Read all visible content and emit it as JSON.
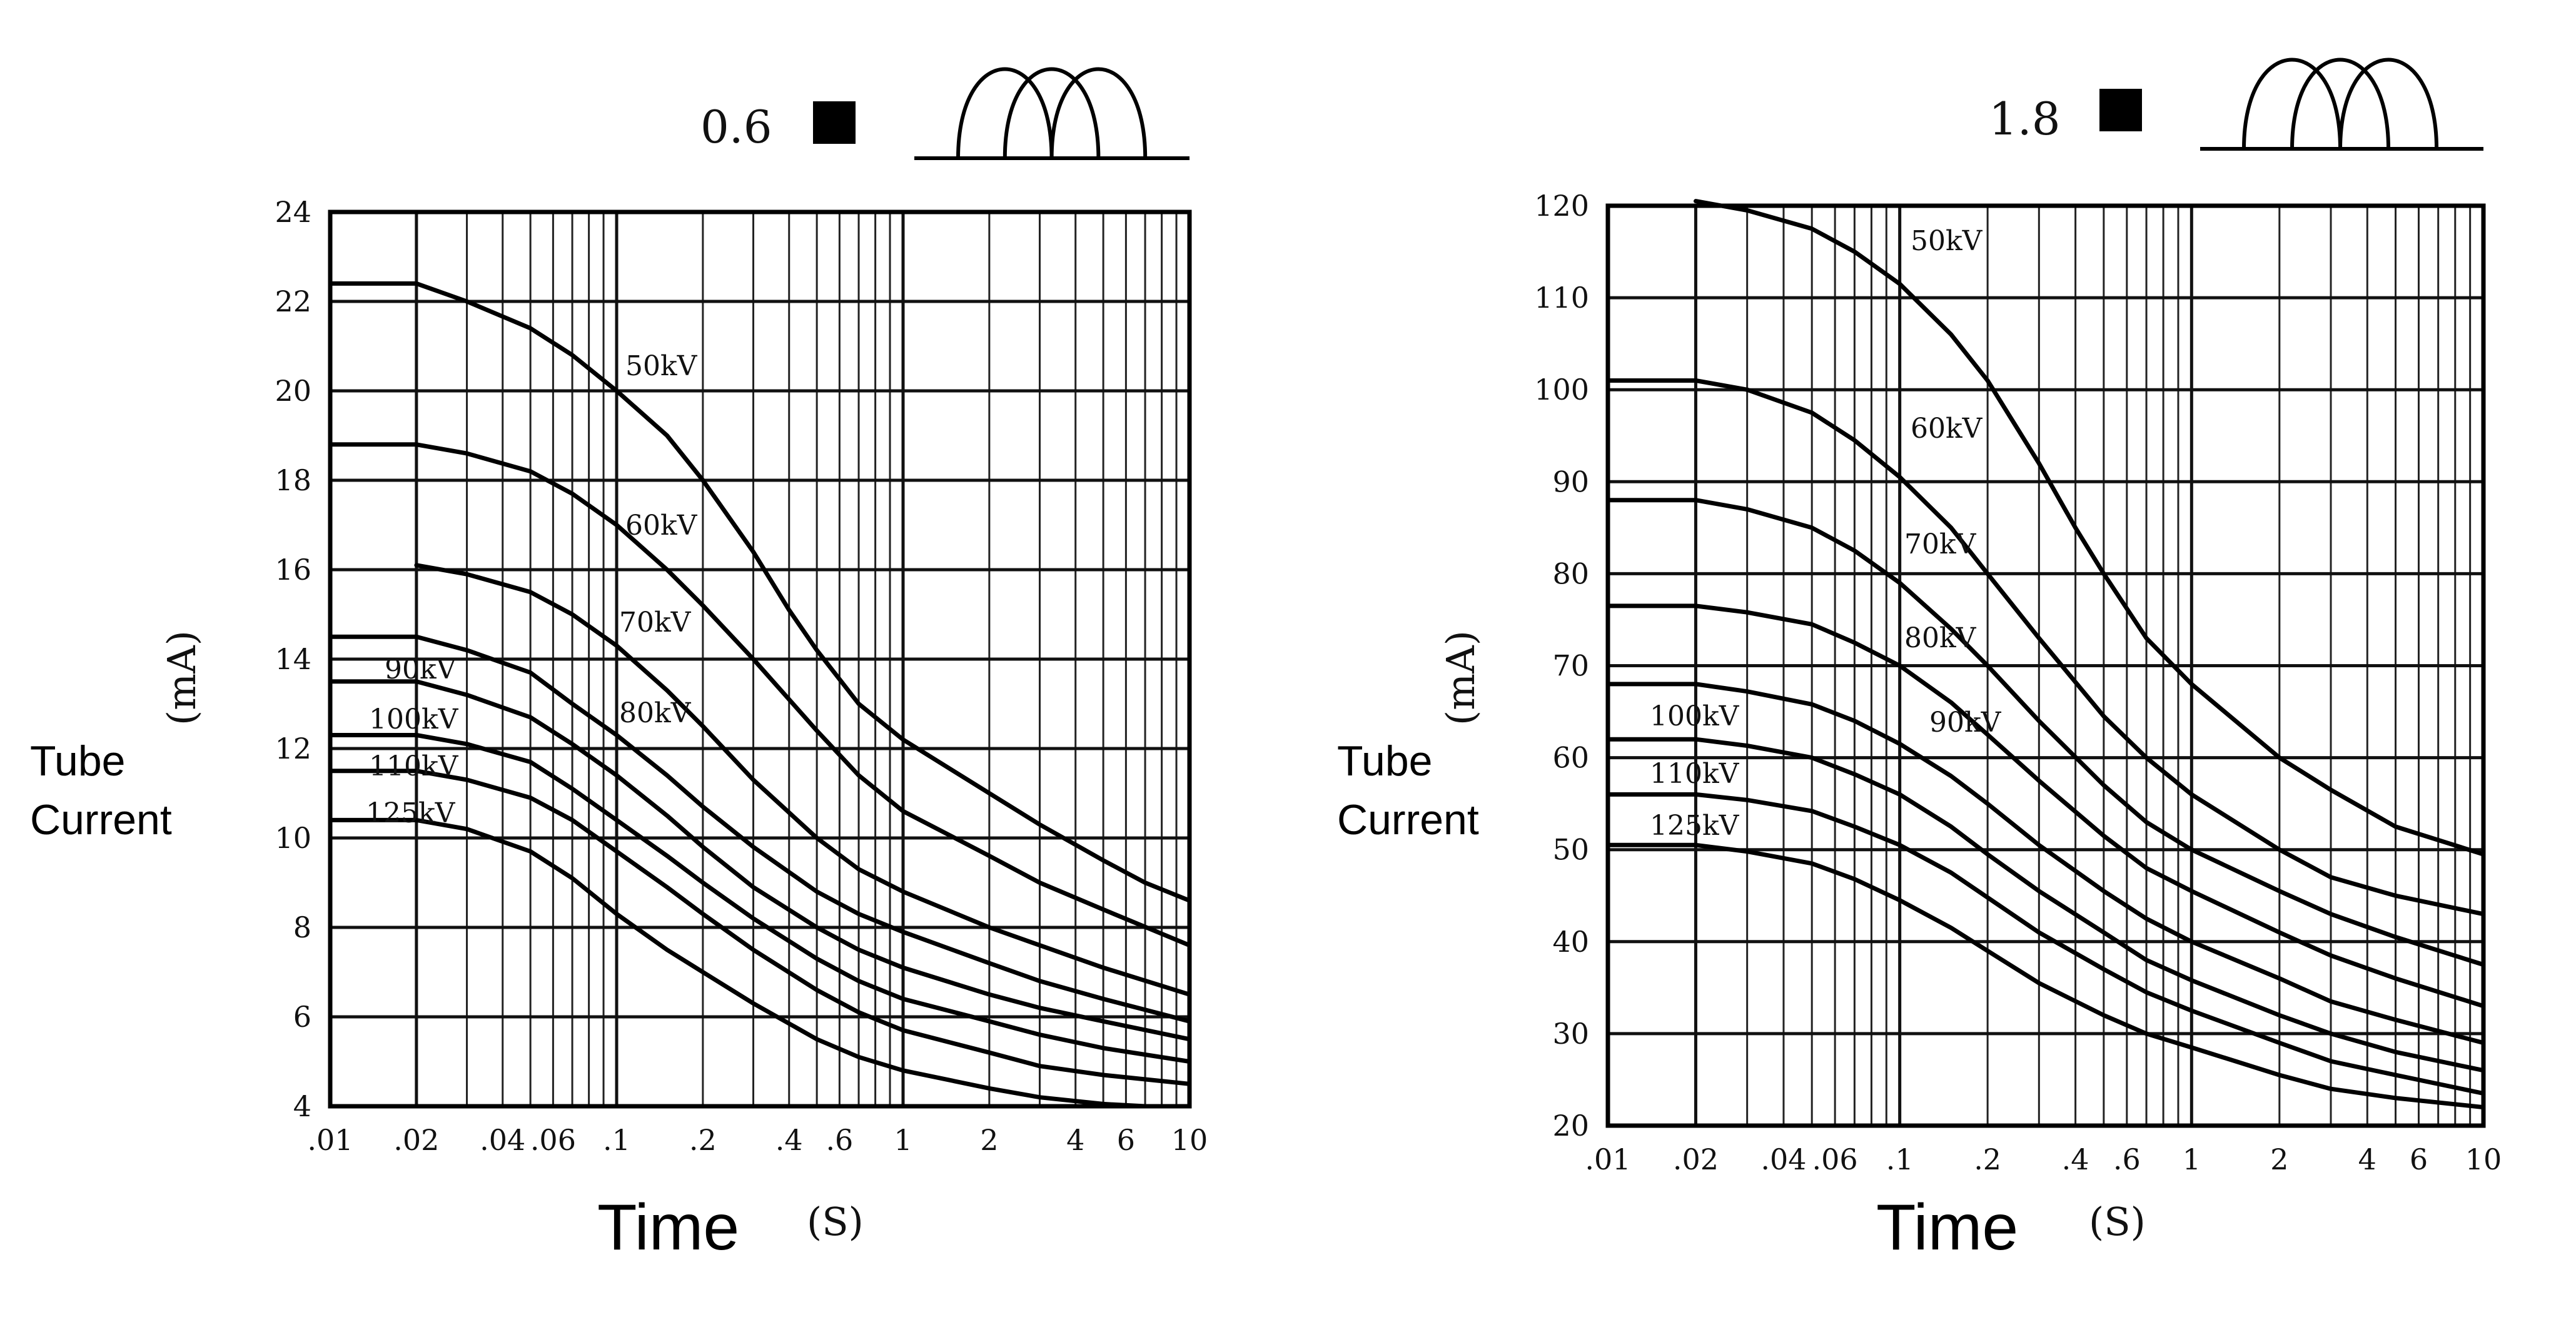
{
  "chart_data": [
    {
      "type": "line",
      "focal_value": "0.6",
      "x_scale": "log",
      "xlim": [
        0.01,
        10
      ],
      "ylim": [
        4,
        24
      ],
      "x_ticks": [
        ".01",
        ".02",
        ".04",
        ".06",
        ".1",
        ".2",
        ".4",
        ".6",
        "1",
        "2",
        "4",
        "6",
        "10"
      ],
      "y_ticks": [
        "4",
        "6",
        "8",
        "10",
        "12",
        "14",
        "16",
        "18",
        "20",
        "22",
        "24"
      ],
      "ylabel_line1": "Tube",
      "ylabel_line2": "Current",
      "ylabel_unit": "(mA)",
      "xlabel": "Time",
      "xlabel_unit": "(S)",
      "grid": true,
      "series": [
        {
          "name": "50kV",
          "x": [
            0.01,
            0.02,
            0.03,
            0.05,
            0.07,
            0.1,
            0.15,
            0.2,
            0.3,
            0.4,
            0.5,
            0.7,
            1,
            2,
            3,
            5,
            7,
            10
          ],
          "y": [
            22.4,
            22.4,
            22.0,
            21.4,
            20.8,
            20.0,
            19.0,
            18.0,
            16.4,
            15.1,
            14.2,
            13.0,
            12.2,
            11.0,
            10.3,
            9.5,
            9.0,
            8.6
          ]
        },
        {
          "name": "60kV",
          "x": [
            0.01,
            0.02,
            0.03,
            0.05,
            0.07,
            0.1,
            0.15,
            0.2,
            0.3,
            0.5,
            0.7,
            1,
            2,
            3,
            5,
            10
          ],
          "y": [
            18.8,
            18.8,
            18.6,
            18.2,
            17.7,
            17.0,
            16.0,
            15.2,
            14.0,
            12.4,
            11.4,
            10.6,
            9.6,
            9.0,
            8.4,
            7.6
          ]
        },
        {
          "name": "70kV",
          "x": [
            0.02,
            0.03,
            0.05,
            0.07,
            0.1,
            0.15,
            0.2,
            0.3,
            0.5,
            0.7,
            1,
            2,
            3,
            5,
            10
          ],
          "y": [
            16.1,
            15.9,
            15.5,
            15.0,
            14.3,
            13.3,
            12.5,
            11.3,
            10.0,
            9.3,
            8.8,
            8.0,
            7.6,
            7.1,
            6.5
          ]
        },
        {
          "name": "80kV",
          "x": [
            0.01,
            0.02,
            0.03,
            0.05,
            0.07,
            0.1,
            0.15,
            0.2,
            0.3,
            0.5,
            0.7,
            1,
            2,
            3,
            5,
            10
          ],
          "y": [
            14.5,
            14.5,
            14.2,
            13.7,
            13.0,
            12.3,
            11.4,
            10.7,
            9.8,
            8.8,
            8.3,
            7.9,
            7.2,
            6.8,
            6.4,
            5.9
          ]
        },
        {
          "name": "90kV",
          "x": [
            0.01,
            0.02,
            0.03,
            0.05,
            0.07,
            0.1,
            0.15,
            0.2,
            0.3,
            0.5,
            0.7,
            1,
            2,
            3,
            5,
            10
          ],
          "y": [
            13.5,
            13.5,
            13.2,
            12.7,
            12.1,
            11.4,
            10.5,
            9.8,
            8.9,
            8.0,
            7.5,
            7.1,
            6.5,
            6.2,
            5.9,
            5.5
          ]
        },
        {
          "name": "100kV",
          "x": [
            0.01,
            0.02,
            0.03,
            0.05,
            0.07,
            0.1,
            0.15,
            0.2,
            0.3,
            0.5,
            0.7,
            1,
            2,
            3,
            5,
            10
          ],
          "y": [
            12.3,
            12.3,
            12.1,
            11.7,
            11.1,
            10.4,
            9.6,
            9.0,
            8.2,
            7.3,
            6.8,
            6.4,
            5.9,
            5.6,
            5.3,
            5.0
          ]
        },
        {
          "name": "110kV",
          "x": [
            0.01,
            0.02,
            0.03,
            0.05,
            0.07,
            0.1,
            0.15,
            0.2,
            0.3,
            0.5,
            0.7,
            1,
            2,
            3,
            5,
            10
          ],
          "y": [
            11.5,
            11.5,
            11.3,
            10.9,
            10.4,
            9.7,
            8.9,
            8.3,
            7.5,
            6.6,
            6.1,
            5.7,
            5.2,
            4.9,
            4.7,
            4.5
          ]
        },
        {
          "name": "125kV",
          "x": [
            0.01,
            0.02,
            0.03,
            0.05,
            0.07,
            0.1,
            0.15,
            0.2,
            0.3,
            0.5,
            0.7,
            1,
            2,
            3,
            5,
            7,
            10
          ],
          "y": [
            10.4,
            10.4,
            10.2,
            9.7,
            9.1,
            8.3,
            7.5,
            7.0,
            6.3,
            5.5,
            5.1,
            4.8,
            4.4,
            4.2,
            4.05,
            4.0,
            4.0
          ]
        }
      ]
    },
    {
      "type": "line",
      "focal_value": "1.8",
      "x_scale": "log",
      "xlim": [
        0.01,
        10
      ],
      "ylim": [
        20,
        120
      ],
      "x_ticks": [
        ".01",
        ".02",
        ".04",
        ".06",
        ".1",
        ".2",
        ".4",
        ".6",
        "1",
        "2",
        "4",
        "6",
        "10"
      ],
      "y_ticks": [
        "20",
        "30",
        "40",
        "50",
        "60",
        "70",
        "80",
        "90",
        "100",
        "110",
        "120"
      ],
      "ylabel_line1": "Tube",
      "ylabel_line2": "Current",
      "ylabel_unit": "(mA)",
      "xlabel": "Time",
      "xlabel_unit": "(S)",
      "grid": true,
      "series": [
        {
          "name": "50kV",
          "x": [
            0.02,
            0.03,
            0.05,
            0.07,
            0.1,
            0.15,
            0.2,
            0.3,
            0.4,
            0.5,
            0.7,
            1,
            2,
            3,
            5,
            10
          ],
          "y": [
            120.5,
            119.5,
            117.5,
            115.0,
            111.5,
            106.0,
            101.0,
            92.0,
            85.0,
            80.0,
            73.0,
            68.0,
            60.0,
            56.5,
            52.5,
            49.5
          ]
        },
        {
          "name": "60kV",
          "x": [
            0.01,
            0.02,
            0.03,
            0.05,
            0.07,
            0.1,
            0.15,
            0.2,
            0.3,
            0.5,
            0.7,
            1,
            2,
            3,
            5,
            10
          ],
          "y": [
            101.0,
            101.0,
            100.0,
            97.5,
            94.5,
            90.5,
            85.0,
            80.0,
            73.0,
            64.5,
            60.0,
            56.0,
            50.0,
            47.0,
            45.0,
            43.0
          ]
        },
        {
          "name": "70kV",
          "x": [
            0.01,
            0.02,
            0.03,
            0.05,
            0.07,
            0.1,
            0.15,
            0.2,
            0.3,
            0.5,
            0.7,
            1,
            2,
            3,
            5,
            10
          ],
          "y": [
            88.0,
            88.0,
            87.0,
            85.0,
            82.5,
            79.0,
            74.0,
            70.0,
            64.0,
            57.0,
            53.0,
            50.0,
            45.5,
            43.0,
            40.5,
            37.5
          ]
        },
        {
          "name": "80kV",
          "x": [
            0.01,
            0.02,
            0.03,
            0.05,
            0.07,
            0.1,
            0.15,
            0.2,
            0.3,
            0.5,
            0.7,
            1,
            2,
            3,
            5,
            10
          ],
          "y": [
            76.5,
            76.5,
            75.8,
            74.5,
            72.5,
            70.0,
            66.0,
            62.5,
            57.5,
            51.5,
            48.0,
            45.5,
            41.0,
            38.5,
            36.0,
            33.0
          ]
        },
        {
          "name": "90kV",
          "x": [
            0.01,
            0.02,
            0.03,
            0.05,
            0.07,
            0.1,
            0.15,
            0.2,
            0.3,
            0.5,
            0.7,
            1,
            2,
            3,
            5,
            10
          ],
          "y": [
            68.0,
            68.0,
            67.2,
            65.8,
            64.0,
            61.5,
            58.0,
            55.0,
            50.5,
            45.5,
            42.5,
            40.0,
            36.0,
            33.5,
            31.5,
            29.0
          ]
        },
        {
          "name": "100kV",
          "x": [
            0.01,
            0.02,
            0.03,
            0.05,
            0.07,
            0.1,
            0.15,
            0.2,
            0.3,
            0.5,
            0.7,
            1,
            2,
            3,
            5,
            10
          ],
          "y": [
            62.0,
            62.0,
            61.3,
            60.0,
            58.2,
            56.0,
            52.5,
            49.5,
            45.5,
            41.0,
            38.0,
            35.8,
            32.0,
            30.0,
            28.0,
            26.0
          ]
        },
        {
          "name": "110kV",
          "x": [
            0.01,
            0.02,
            0.03,
            0.05,
            0.07,
            0.1,
            0.15,
            0.2,
            0.3,
            0.5,
            0.7,
            1,
            2,
            3,
            5,
            10
          ],
          "y": [
            56.0,
            56.0,
            55.4,
            54.2,
            52.5,
            50.5,
            47.5,
            44.8,
            41.0,
            37.0,
            34.5,
            32.5,
            29.0,
            27.0,
            25.5,
            23.5
          ]
        },
        {
          "name": "125kV",
          "x": [
            0.01,
            0.02,
            0.03,
            0.05,
            0.07,
            0.1,
            0.15,
            0.2,
            0.3,
            0.5,
            0.7,
            1,
            2,
            3,
            5,
            10
          ],
          "y": [
            50.5,
            50.5,
            49.8,
            48.5,
            46.8,
            44.5,
            41.5,
            39.0,
            35.5,
            32.0,
            30.0,
            28.5,
            25.5,
            24.0,
            23.0,
            22.0
          ]
        }
      ]
    }
  ]
}
